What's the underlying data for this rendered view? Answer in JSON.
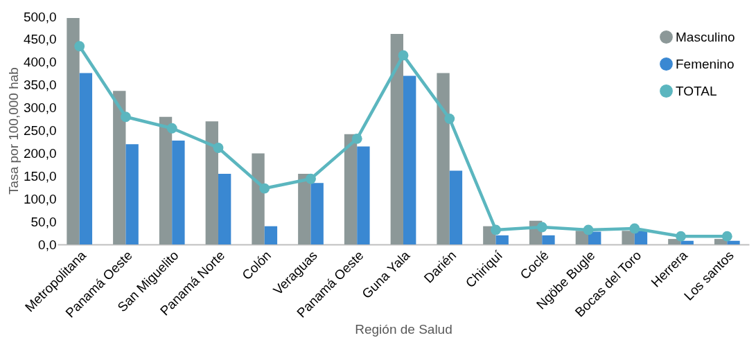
{
  "chart_data": {
    "type": "bar",
    "xlabel": "Región de Salud",
    "ylabel": "Tasa por 100,000 hab",
    "categories": [
      "Metropolitana",
      "Panamá Oeste",
      "San Miguelito",
      "Panamá Norte",
      "Colón",
      "Veraguas",
      "Panamá Oeste",
      "Guna Yala",
      "Darién",
      "Chiriquí",
      "Coclé",
      "Ngöbe Bugle",
      "Bocas del Toro",
      "Herrera",
      "Los santos"
    ],
    "series": [
      {
        "name": "Masculino",
        "color": "#8c9898",
        "values": [
          497,
          337,
          280,
          270,
          200,
          155,
          242,
          462,
          376,
          40,
          52,
          30,
          30,
          12,
          12
        ]
      },
      {
        "name": "Femenino",
        "color": "#3a88d2",
        "values": [
          376,
          220,
          228,
          155,
          40,
          135,
          215,
          370,
          162,
          20,
          20,
          28,
          30,
          8,
          8
        ]
      },
      {
        "name": "TOTAL",
        "type": "line",
        "color": "#5bb6bf",
        "marker": "circle",
        "line_style": "solid",
        "values": [
          435,
          280,
          255,
          212,
          123,
          144,
          232,
          415,
          276,
          32,
          38,
          32,
          35,
          18,
          18
        ]
      }
    ],
    "ylim": [
      0,
      500
    ],
    "yticks": [
      {
        "value": 0,
        "label": "0,0"
      },
      {
        "value": 50,
        "label": "50,0"
      },
      {
        "value": 100,
        "label": "100,0"
      },
      {
        "value": 150,
        "label": "150,0"
      },
      {
        "value": 200,
        "label": "200,0"
      },
      {
        "value": 250,
        "label": "250,0"
      },
      {
        "value": 300,
        "label": "300,0"
      },
      {
        "value": 350,
        "label": "350,0"
      },
      {
        "value": 400,
        "label": "400,0"
      },
      {
        "value": 450,
        "label": "450,0"
      },
      {
        "value": 500,
        "label": "500,0"
      }
    ],
    "grid": false,
    "legend": "top right"
  }
}
